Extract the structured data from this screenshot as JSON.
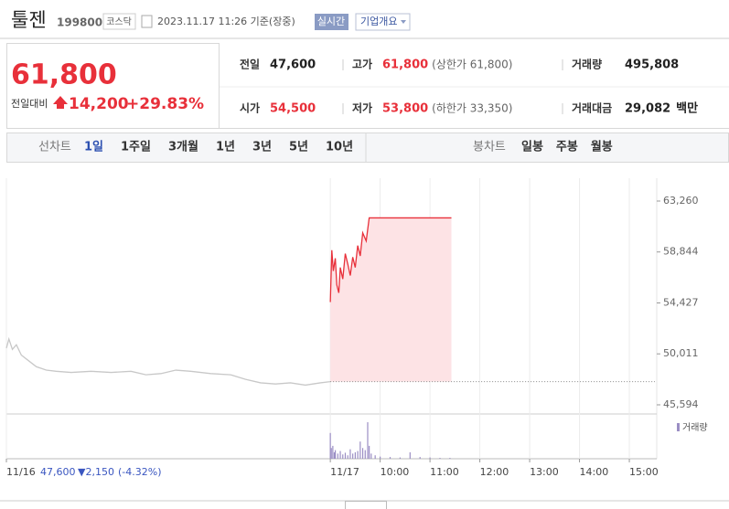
{
  "header": {
    "name": "툴젠",
    "code": "199800",
    "market": "코스닥",
    "timestamp": "2023.11.17 11:26 기준(장중)",
    "realtime_button": "실시간",
    "company_button": "기업개요"
  },
  "price": {
    "current": "61,800",
    "change_label": "전일대비",
    "change": "14,200",
    "rate": "+29.83%"
  },
  "stats": [
    {
      "label": "전일",
      "value": "47,600"
    },
    {
      "label": "고가",
      "value": "61,800",
      "note": "(상한가 61,800)"
    },
    {
      "label": "거래량",
      "value": "495,808"
    },
    {
      "label": "시가",
      "value": "54,500"
    },
    {
      "label": "저가",
      "value": "53,800",
      "note": "(하한가 33,350)"
    },
    {
      "label": "거래대금",
      "value": "29,082",
      "unit": "백만"
    }
  ],
  "tabs": {
    "line_label": "선차트",
    "line_periods": [
      "1일",
      "1주일",
      "3개월",
      "1년",
      "3년",
      "5년",
      "10년"
    ],
    "candle_label": "봉차트",
    "candle_periods": [
      "일봉",
      "주봉",
      "월봉"
    ]
  },
  "chart": {
    "type": "line",
    "xlim": [
      2.5,
      15.55
    ],
    "ylim": [
      44880,
      65240
    ],
    "yticks": [
      {
        "value": 63260,
        "label": "63,260"
      },
      {
        "value": 58844,
        "label": "58,844"
      },
      {
        "value": 54427,
        "label": "54,427"
      },
      {
        "value": 50011,
        "label": "50,011"
      },
      {
        "value": 45594,
        "label": "45,594"
      }
    ],
    "xticks": [
      {
        "value": 2.5,
        "label": "11/16"
      },
      {
        "value": 9,
        "label": "11/17"
      },
      {
        "value": 10,
        "label": "10:00"
      },
      {
        "value": 11,
        "label": "11:00"
      },
      {
        "value": 12,
        "label": "12:00"
      },
      {
        "value": 13,
        "label": "13:00"
      },
      {
        "value": 14,
        "label": "14:00"
      },
      {
        "value": 15,
        "label": "15:00"
      }
    ],
    "baseline": 47600,
    "series": [
      {
        "color": "#c8c8c8",
        "x": [
          2.5,
          2.55,
          2.62,
          2.7,
          2.8,
          2.95,
          3.1,
          3.3,
          3.5,
          3.8,
          4.2,
          4.6,
          5.0,
          5.3,
          5.6,
          5.9,
          6.2,
          6.6,
          7.0,
          7.3,
          7.6,
          7.9,
          8.2,
          8.5,
          8.8,
          9.0
        ],
        "values": [
          50500,
          51300,
          50400,
          50800,
          49900,
          49400,
          48900,
          48600,
          48500,
          48400,
          48500,
          48400,
          48500,
          48200,
          48300,
          48600,
          48500,
          48300,
          48200,
          47800,
          47500,
          47400,
          47500,
          47300,
          47500,
          47600
        ]
      },
      {
        "color": "#e8303a",
        "fill": "#fde3e5",
        "x": [
          9.0,
          9.03,
          9.06,
          9.1,
          9.13,
          9.17,
          9.2,
          9.25,
          9.3,
          9.35,
          9.4,
          9.45,
          9.5,
          9.55,
          9.6,
          9.65,
          9.72,
          9.78,
          11.43
        ],
        "values": [
          54500,
          59000,
          57200,
          58300,
          56000,
          55300,
          57500,
          56500,
          58700,
          57800,
          56800,
          58400,
          57500,
          59400,
          58500,
          60500,
          59800,
          61800,
          61800
        ]
      }
    ],
    "volume": {
      "label": "거래량",
      "color": "#9b8ec4",
      "vlim": [
        0,
        100
      ],
      "x": [
        9.0,
        9.02,
        9.05,
        9.08,
        9.1,
        9.15,
        9.2,
        9.25,
        9.3,
        9.35,
        9.4,
        9.45,
        9.5,
        9.55,
        9.6,
        9.65,
        9.7,
        9.75,
        9.78,
        9.82,
        9.9,
        10.0,
        10.2,
        10.4,
        10.6,
        10.8,
        11.0,
        11.2,
        11.4
      ],
      "values": [
        60,
        25,
        30,
        15,
        20,
        12,
        18,
        10,
        14,
        8,
        22,
        12,
        15,
        18,
        40,
        25,
        20,
        85,
        30,
        12,
        8,
        5,
        4,
        3,
        15,
        4,
        3,
        2,
        2
      ]
    },
    "prev_day": {
      "close": "47,600",
      "change": "▼2,150",
      "rate": "(-4.32%)"
    }
  }
}
